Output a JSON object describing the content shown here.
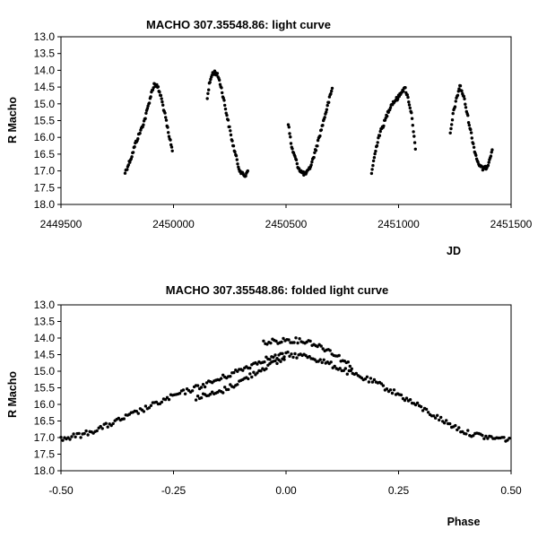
{
  "chart_data": [
    {
      "type": "scatter",
      "title": "MACHO 307.35548.86: light curve",
      "xlabel": "JD",
      "ylabel": "R Macho",
      "xlim": [
        2449500,
        2451500
      ],
      "ylim": [
        13.0,
        18.0
      ],
      "y_inverted": true,
      "grid": false,
      "legend": "none",
      "x_ticks": [
        "2449500",
        "2450000",
        "2450500",
        "2451000",
        "2451500"
      ],
      "y_ticks": [
        "13.0",
        "13.5",
        "14.0",
        "14.5",
        "15.0",
        "15.5",
        "16.0",
        "16.5",
        "17.0",
        "17.5",
        "18.0"
      ],
      "marker_color": "#000000",
      "segments": [
        {
          "points": [
            [
              2449785,
              17.05
            ],
            [
              2449800,
              16.8
            ],
            [
              2449815,
              16.55
            ],
            [
              2449830,
              16.2
            ],
            [
              2449845,
              15.95
            ],
            [
              2449860,
              15.7
            ],
            [
              2449875,
              15.4
            ],
            [
              2449890,
              15.0
            ],
            [
              2449905,
              14.6
            ],
            [
              2449915,
              14.4
            ],
            [
              2449930,
              14.5
            ],
            [
              2449945,
              14.8
            ],
            [
              2449958,
              15.2
            ],
            [
              2449970,
              15.6
            ],
            [
              2449980,
              16.0
            ],
            [
              2449988,
              16.15
            ],
            [
              2449995,
              16.4
            ]
          ]
        },
        {
          "points": [
            [
              2450150,
              14.8
            ],
            [
              2450160,
              14.4
            ],
            [
              2450172,
              14.1
            ],
            [
              2450185,
              14.05
            ],
            [
              2450200,
              14.2
            ],
            [
              2450215,
              14.6
            ],
            [
              2450230,
              15.1
            ],
            [
              2450245,
              15.6
            ],
            [
              2450260,
              16.1
            ],
            [
              2450275,
              16.5
            ],
            [
              2450290,
              16.9
            ],
            [
              2450305,
              17.1
            ],
            [
              2450320,
              17.15
            ],
            [
              2450330,
              16.95
            ]
          ]
        },
        {
          "points": [
            [
              2450510,
              15.6
            ],
            [
              2450525,
              16.3
            ],
            [
              2450540,
              16.6
            ],
            [
              2450555,
              16.9
            ],
            [
              2450570,
              17.05
            ],
            [
              2450585,
              17.1
            ],
            [
              2450600,
              17.0
            ],
            [
              2450615,
              16.75
            ],
            [
              2450635,
              16.3
            ],
            [
              2450655,
              15.8
            ],
            [
              2450675,
              15.3
            ],
            [
              2450695,
              14.8
            ],
            [
              2450705,
              14.55
            ]
          ]
        },
        {
          "points": [
            [
              2450880,
              17.05
            ],
            [
              2450895,
              16.5
            ],
            [
              2450910,
              16.0
            ],
            [
              2450925,
              15.75
            ],
            [
              2450940,
              15.5
            ],
            [
              2450955,
              15.2
            ],
            [
              2450970,
              15.0
            ],
            [
              2450985,
              14.9
            ],
            [
              2451000,
              14.8
            ],
            [
              2451015,
              14.6
            ],
            [
              2451030,
              14.55
            ],
            [
              2451045,
              14.9
            ],
            [
              2451060,
              15.4
            ],
            [
              2451075,
              16.4
            ]
          ]
        },
        {
          "points": [
            [
              2451230,
              15.9
            ],
            [
              2451245,
              15.2
            ],
            [
              2451260,
              14.8
            ],
            [
              2451272,
              14.45
            ],
            [
              2451290,
              14.8
            ],
            [
              2451305,
              15.3
            ],
            [
              2451320,
              15.8
            ],
            [
              2451335,
              16.3
            ],
            [
              2451350,
              16.7
            ],
            [
              2451365,
              16.9
            ],
            [
              2451380,
              16.95
            ],
            [
              2451395,
              16.85
            ],
            [
              2451410,
              16.5
            ],
            [
              2451418,
              16.3
            ]
          ]
        }
      ]
    },
    {
      "type": "scatter",
      "title": "MACHO 307.35548.86: folded light curve",
      "xlabel": "Phase",
      "ylabel": "R Macho",
      "xlim": [
        -0.5,
        0.5
      ],
      "ylim": [
        13.0,
        18.0
      ],
      "y_inverted": true,
      "grid": false,
      "legend": "none",
      "x_ticks": [
        "-0.50",
        "-0.25",
        "0.00",
        "0.25",
        "0.50"
      ],
      "y_ticks": [
        "13.0",
        "13.5",
        "14.0",
        "14.5",
        "15.0",
        "15.5",
        "16.0",
        "16.5",
        "17.0",
        "17.5",
        "18.0"
      ],
      "marker_color": "#000000",
      "curves": [
        {
          "points": [
            [
              -0.5,
              17.05
            ],
            [
              -0.45,
              16.9
            ],
            [
              -0.4,
              16.65
            ],
            [
              -0.35,
              16.35
            ],
            [
              -0.3,
              16.05
            ],
            [
              -0.25,
              15.75
            ],
            [
              -0.2,
              15.5
            ],
            [
              -0.15,
              15.25
            ],
            [
              -0.1,
              14.95
            ],
            [
              -0.05,
              14.65
            ],
            [
              0.0,
              14.5
            ],
            [
              0.05,
              14.55
            ],
            [
              0.1,
              14.8
            ],
            [
              0.15,
              15.1
            ],
            [
              0.2,
              15.35
            ],
            [
              0.25,
              15.7
            ],
            [
              0.3,
              16.1
            ],
            [
              0.35,
              16.5
            ],
            [
              0.4,
              16.85
            ],
            [
              0.45,
              17.0
            ],
            [
              0.5,
              17.05
            ]
          ]
        },
        {
          "points": [
            [
              -0.05,
              14.15
            ],
            [
              0.0,
              14.05
            ],
            [
              0.05,
              14.1
            ],
            [
              0.1,
              14.4
            ],
            [
              0.15,
              14.9
            ]
          ]
        },
        {
          "points": [
            [
              -0.2,
              15.8
            ],
            [
              -0.15,
              15.65
            ],
            [
              -0.1,
              15.3
            ],
            [
              -0.05,
              14.9
            ],
            [
              0.0,
              14.6
            ]
          ]
        }
      ]
    }
  ]
}
